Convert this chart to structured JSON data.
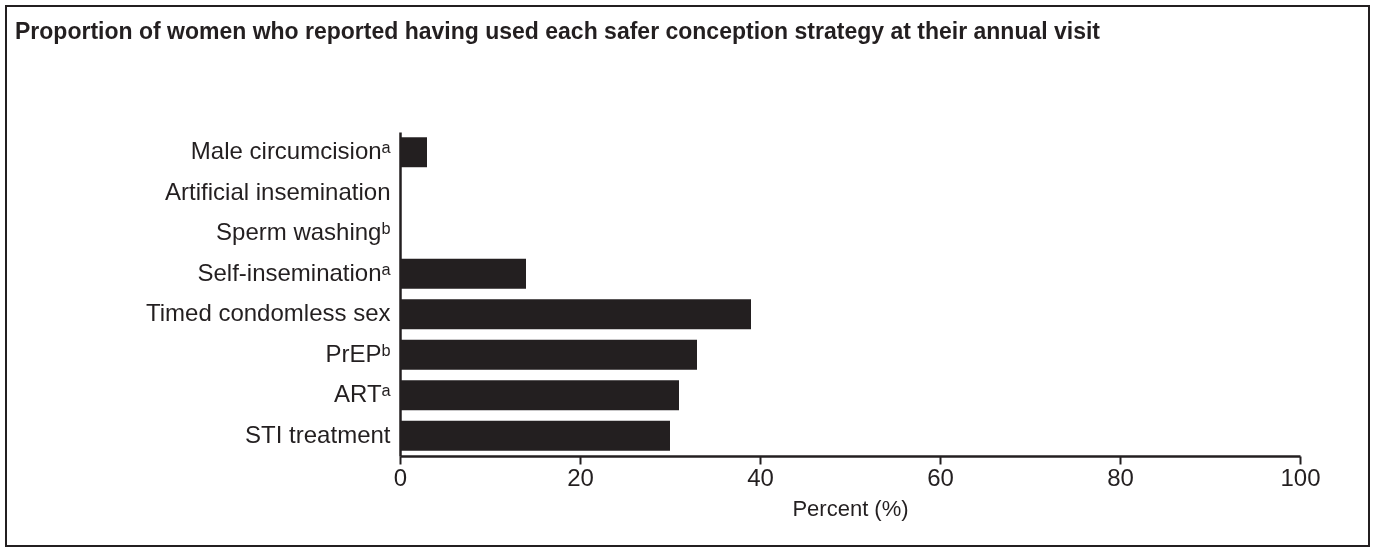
{
  "chart_data": {
    "type": "bar",
    "orientation": "horizontal",
    "title": "Proportion of women who reported having used each safer conception strategy at their annual visit",
    "xlabel": "Percent (%)",
    "categories": [
      "Male circumcisionᵃ",
      "Artificial insemination",
      "Sperm washingᵇ",
      "Self-inseminationᵃ",
      "Timed condomless sex",
      "PrEPᵇ",
      "ARTᵃ",
      "STI treatment"
    ],
    "values": [
      3,
      0,
      0,
      14,
      39,
      33,
      31,
      30
    ],
    "color": "#231f20",
    "xlim": [
      0,
      100
    ],
    "xticks": [
      0,
      20,
      40,
      60,
      80,
      100
    ]
  }
}
